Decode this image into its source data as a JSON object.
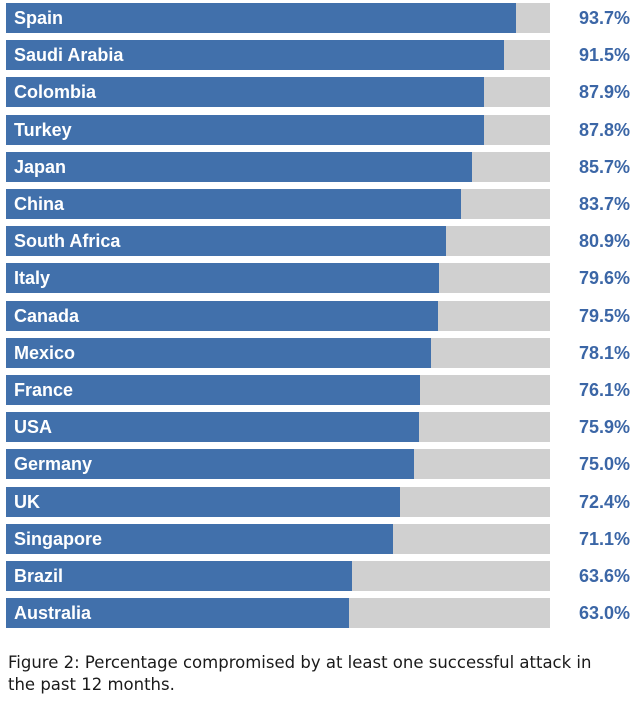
{
  "chart_data": {
    "type": "bar",
    "orientation": "horizontal",
    "categories": [
      "Spain",
      "Saudi Arabia",
      "Colombia",
      "Turkey",
      "Japan",
      "China",
      "South Africa",
      "Italy",
      "Canada",
      "Mexico",
      "France",
      "USA",
      "Germany",
      "UK",
      "Singapore",
      "Brazil",
      "Australia"
    ],
    "values": [
      93.7,
      91.5,
      87.9,
      87.8,
      85.7,
      83.7,
      80.9,
      79.6,
      79.5,
      78.1,
      76.1,
      75.9,
      75.0,
      72.4,
      71.1,
      63.6,
      63.0
    ],
    "value_labels": [
      "93.7%",
      "91.5%",
      "87.9%",
      "87.8%",
      "85.7%",
      "83.7%",
      "80.9%",
      "79.6%",
      "79.5%",
      "78.1%",
      "76.1%",
      "75.9%",
      "75.0%",
      "72.4%",
      "71.1%",
      "63.6%",
      "63.0%"
    ],
    "xlim": [
      0,
      100
    ],
    "unit": "%",
    "colors": {
      "bar": "#4170ab",
      "track": "#d0d0d0",
      "value_text": "#3b66a6"
    }
  },
  "caption": "Figure 2: Percentage compromised by at least one successful attack in the past 12 months."
}
